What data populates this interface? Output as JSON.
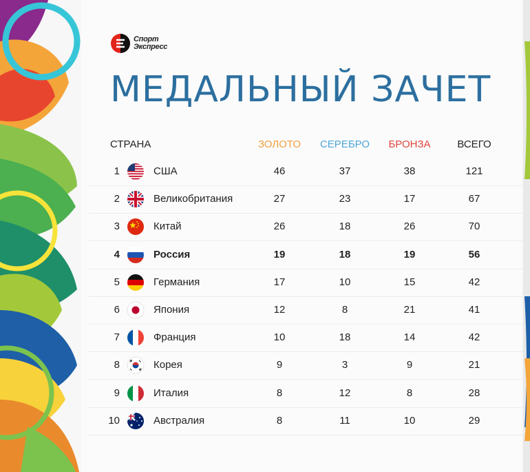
{
  "brand": {
    "line1": "Спорт",
    "line2": "Экспресс"
  },
  "title": "МЕДАЛЬНЫЙ ЗАЧЕТ",
  "colors": {
    "gold": "#f0a040",
    "silver": "#4da7d8",
    "bronze": "#e0463e",
    "title": "#2c6f9f"
  },
  "headers": {
    "country": "СТРАНА",
    "gold": "ЗОЛОТО",
    "silver": "СЕРЕБРО",
    "bronze": "БРОНЗА",
    "total": "ВСЕГО"
  },
  "rows": [
    {
      "rank": "1",
      "country": "США",
      "flag": "usa-flag-icon",
      "gold": "46",
      "silver": "37",
      "bronze": "38",
      "total": "121"
    },
    {
      "rank": "2",
      "country": "Великобритания",
      "flag": "uk-flag-icon",
      "gold": "27",
      "silver": "23",
      "bronze": "17",
      "total": "67"
    },
    {
      "rank": "3",
      "country": "Китай",
      "flag": "china-flag-icon",
      "gold": "26",
      "silver": "18",
      "bronze": "26",
      "total": "70"
    },
    {
      "rank": "4",
      "country": "Россия",
      "flag": "russia-flag-icon",
      "gold": "19",
      "silver": "18",
      "bronze": "19",
      "total": "56",
      "highlight": true
    },
    {
      "rank": "5",
      "country": "Германия",
      "flag": "germany-flag-icon",
      "gold": "17",
      "silver": "10",
      "bronze": "15",
      "total": "42"
    },
    {
      "rank": "6",
      "country": "Япония",
      "flag": "japan-flag-icon",
      "gold": "12",
      "silver": "8",
      "bronze": "21",
      "total": "41"
    },
    {
      "rank": "7",
      "country": "Франция",
      "flag": "france-flag-icon",
      "gold": "10",
      "silver": "18",
      "bronze": "14",
      "total": "42"
    },
    {
      "rank": "8",
      "country": "Корея",
      "flag": "korea-flag-icon",
      "gold": "9",
      "silver": "3",
      "bronze": "9",
      "total": "21"
    },
    {
      "rank": "9",
      "country": "Италия",
      "flag": "italy-flag-icon",
      "gold": "8",
      "silver": "12",
      "bronze": "8",
      "total": "28"
    },
    {
      "rank": "10",
      "country": "Австралия",
      "flag": "australia-flag-icon",
      "gold": "8",
      "silver": "11",
      "bronze": "10",
      "total": "29"
    }
  ]
}
